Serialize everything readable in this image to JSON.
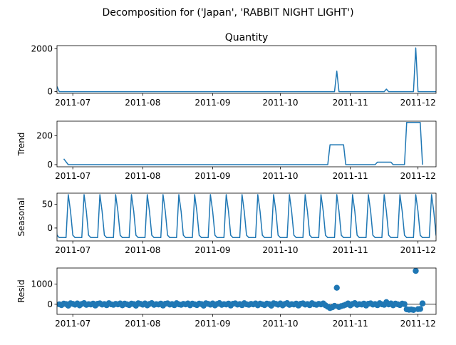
{
  "chart_data": {
    "type": "line",
    "title": "Decomposition for ('Japan', 'RABBIT NIGHT LIGHT')",
    "x_range": [
      "2011-06-24",
      "2011-12-09"
    ],
    "x_ticks": [
      "2011-07",
      "2011-08",
      "2011-09",
      "2011-10",
      "2011-11",
      "2011-12"
    ],
    "x_tick_dates": [
      "2011-07-01",
      "2011-08-01",
      "2011-09-01",
      "2011-10-01",
      "2011-11-01",
      "2011-12-01"
    ],
    "panels": [
      {
        "name": "observed",
        "title": "Quantity",
        "ylabel": "",
        "style": "line",
        "ylim": [
          -80,
          2150
        ],
        "yticks": [
          0,
          2000
        ],
        "points": [
          [
            "2011-06-24",
            240
          ],
          [
            "2011-06-25",
            0
          ],
          [
            "2011-10-25",
            0
          ],
          [
            "2011-10-26",
            960
          ],
          [
            "2011-10-27",
            0
          ],
          [
            "2011-11-16",
            0
          ],
          [
            "2011-11-17",
            120
          ],
          [
            "2011-11-18",
            0
          ],
          [
            "2011-11-29",
            0
          ],
          [
            "2011-11-30",
            2040
          ],
          [
            "2011-12-01",
            0
          ],
          [
            "2011-12-09",
            0
          ]
        ]
      },
      {
        "name": "trend",
        "title": "",
        "ylabel": "Trend",
        "style": "line",
        "ylim": [
          -15,
          300
        ],
        "yticks": [
          0,
          200
        ],
        "points": [
          [
            "2011-06-27",
            40
          ],
          [
            "2011-06-29",
            0
          ],
          [
            "2011-10-22",
            0
          ],
          [
            "2011-10-23",
            137
          ],
          [
            "2011-10-29",
            137
          ],
          [
            "2011-10-30",
            0
          ],
          [
            "2011-11-12",
            0
          ],
          [
            "2011-11-13",
            17
          ],
          [
            "2011-11-19",
            17
          ],
          [
            "2011-11-20",
            0
          ],
          [
            "2011-11-25",
            0
          ],
          [
            "2011-11-26",
            291
          ],
          [
            "2011-12-02",
            291
          ],
          [
            "2011-12-03",
            0
          ]
        ]
      },
      {
        "name": "seasonal",
        "title": "",
        "ylabel": "Seasonal",
        "style": "line",
        "ylim": [
          -27,
          73
        ],
        "yticks": [
          0,
          50
        ],
        "period_days": 7,
        "first_peak": "2011-06-29",
        "pattern": [
          70,
          35,
          -15,
          -20,
          -20,
          -20,
          -20
        ]
      },
      {
        "name": "resid",
        "title": "",
        "ylabel": "Resid",
        "style": "scatter",
        "ylim": [
          -500,
          1800
        ],
        "yticks": [
          0,
          1000
        ],
        "zero_line": true,
        "noise": [
          0,
          -40,
          30,
          10,
          -70,
          50,
          20,
          -20,
          40,
          -55,
          15,
          60,
          -30,
          5,
          -10,
          35,
          -60,
          25,
          45,
          -15,
          10,
          -45,
          55,
          0,
          -25,
          20,
          -5,
          40,
          -50,
          30
        ],
        "points": [
          [
            "2011-10-22",
            -120
          ],
          [
            "2011-10-23",
            -190
          ],
          [
            "2011-10-24",
            -150
          ],
          [
            "2011-10-25",
            -80
          ],
          [
            "2011-10-26",
            820
          ],
          [
            "2011-10-27",
            -140
          ],
          [
            "2011-10-28",
            -90
          ],
          [
            "2011-10-29",
            -60
          ],
          [
            "2011-11-17",
            110
          ],
          [
            "2011-11-26",
            -250
          ],
          [
            "2011-11-27",
            -270
          ],
          [
            "2011-11-28",
            -260
          ],
          [
            "2011-11-29",
            -280
          ],
          [
            "2011-11-30",
            1660
          ],
          [
            "2011-12-01",
            -240
          ],
          [
            "2011-12-02",
            -230
          ],
          [
            "2011-12-03",
            40
          ]
        ]
      }
    ]
  }
}
